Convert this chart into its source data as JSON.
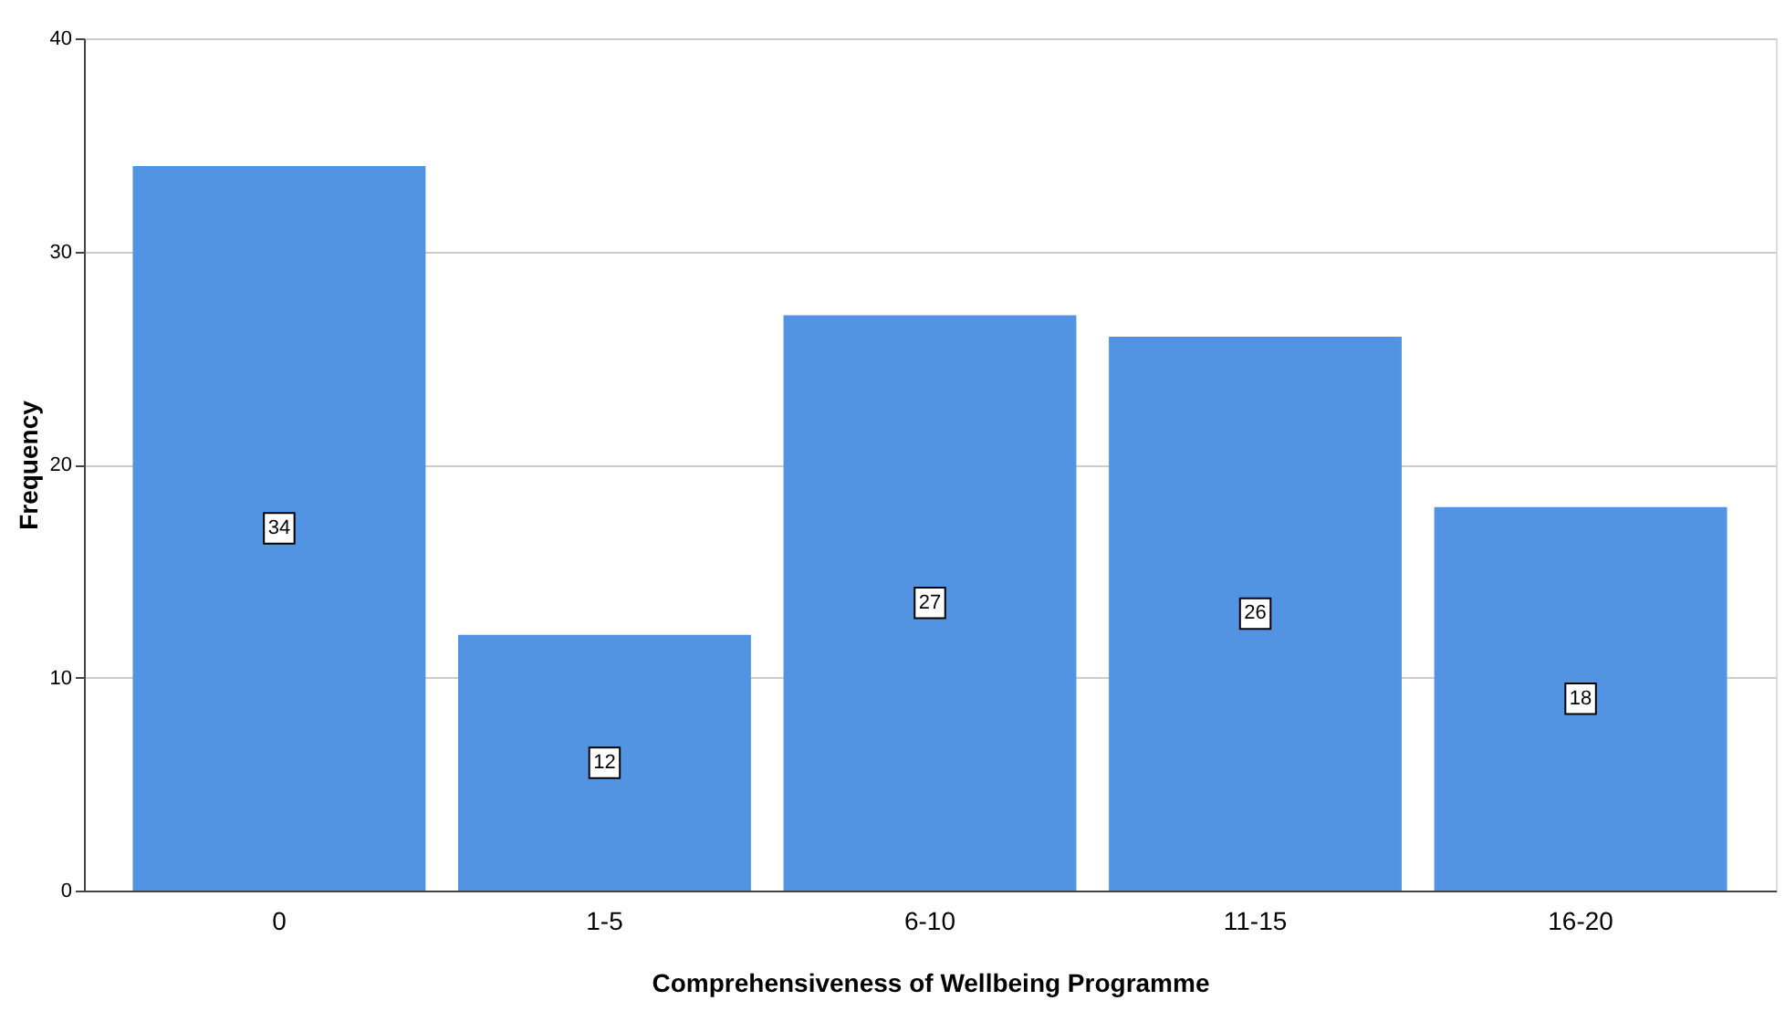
{
  "chart_data": {
    "type": "bar",
    "xlabel": "Comprehensiveness of Wellbeing Programme",
    "ylabel": "Frequency",
    "categories": [
      "0",
      "1-5",
      "6-10",
      "11-15",
      "16-20"
    ],
    "values": [
      34,
      12,
      27,
      26,
      18
    ],
    "color": "#5294e2",
    "ylim": [
      0,
      40
    ],
    "yticks": [
      0,
      10,
      20,
      30,
      40
    ],
    "grid": "y",
    "data_labels": true
  }
}
